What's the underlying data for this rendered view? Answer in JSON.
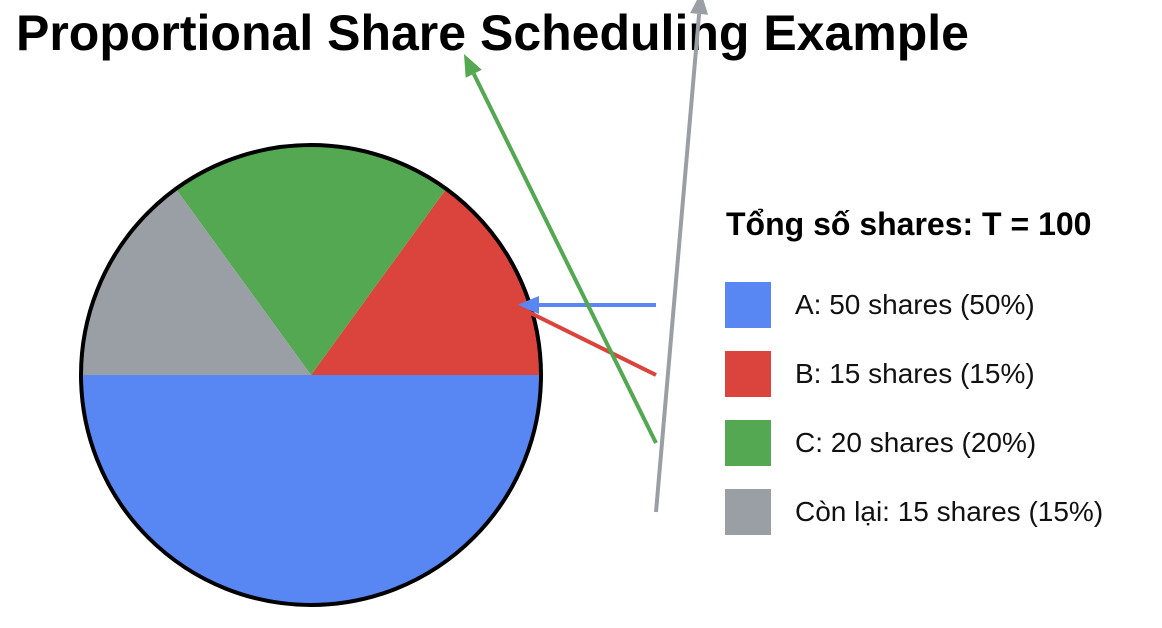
{
  "chart_data": {
    "type": "pie",
    "title": "Proportional Share Scheduling Example",
    "legend_title": "Tổng số shares: T = 100",
    "legend_position": "right",
    "slices": [
      {
        "key": "A",
        "label": "A: 50 shares (50%)",
        "value": 50,
        "color": "#5886f2"
      },
      {
        "key": "B",
        "label": "B: 15 shares (15%)",
        "value": 15,
        "color": "#db443c"
      },
      {
        "key": "C",
        "label": "C: 20 shares (20%)",
        "value": 20,
        "color": "#54a851"
      },
      {
        "key": "rest",
        "label": "Còn lại: 15 shares (15%)",
        "value": 15,
        "color": "#9a9fa6"
      }
    ]
  }
}
